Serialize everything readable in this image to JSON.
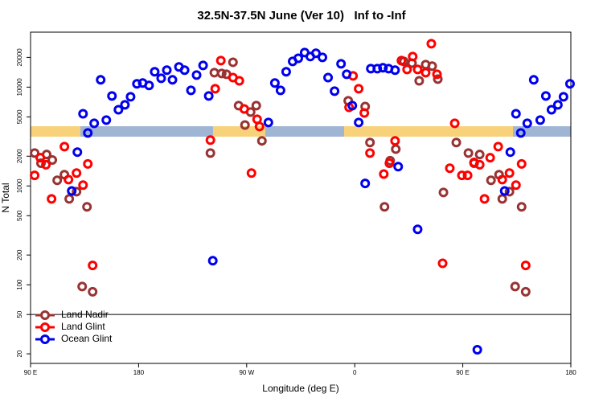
{
  "chart_data": {
    "type": "scatter",
    "title": "32.5N-37.5N June (Ver 10)   Inf to -Inf",
    "x_label": "Longitude (deg E)",
    "y_label": "N Total",
    "log_y": true,
    "legend": "bottom-left",
    "hline": 50,
    "xlim": [
      90,
      540
    ],
    "ylim": [
      16,
      36000
    ],
    "xticks": [
      {
        "value": 90,
        "label": "90 E"
      },
      180,
      {
        "value": 270,
        "label": "90 W"
      },
      {
        "value": 360,
        "label": "0"
      },
      {
        "value": 450,
        "label": "90 E"
      },
      {
        "value": 540,
        "label": "180"
      }
    ],
    "yticks": [
      20,
      50,
      100,
      200,
      500,
      1000,
      2000,
      5000,
      10000,
      20000
    ],
    "series": [
      {
        "name": "Land Nadir",
        "color": "#993333",
        "x": [
          93.4,
          98.7,
          103.4,
          108.1,
          112.2,
          118.2,
          122.2,
          128.3,
          137,
          133,
          141.7,
          239.8,
          243.1,
          249.2,
          253.2,
          258.6,
          263.3,
          268.6,
          273.3,
          278,
          282.7,
          354.6,
          368.7,
          372.7,
          384.8,
          394.2,
          389.5,
          400.9,
          407.7,
          413.7,
          419.1,
          424.5,
          429.2,
          433.9,
          444.6,
          454.7,
          459.4,
          464.1,
          473.5,
          480.2,
          482.9,
          488.9,
          493.6,
          499,
          502.4
        ],
        "values": [
          2150,
          1700,
          2080,
          1830,
          1140,
          1300,
          740,
          875,
          615,
          96,
          85,
          2150,
          14000,
          13750,
          13500,
          17850,
          6500,
          4140,
          5590,
          6500,
          2860,
          7270,
          6370,
          2750,
          615,
          2360,
          1800,
          18200,
          17500,
          11600,
          16900,
          16300,
          12050,
          860,
          2750,
          2150,
          1700,
          2080,
          1140,
          1300,
          740,
          875,
          96,
          615,
          85
        ]
      },
      {
        "name": "Land Glint",
        "color": "#ff0000",
        "x": [
          93.4,
          98.1,
          102.8,
          107.5,
          118.2,
          121.6,
          128.3,
          133.7,
          137.7,
          141.7,
          239.8,
          243.8,
          248.5,
          258.6,
          263.9,
          268,
          274,
          278.7,
          280.7,
          358.6,
          363.3,
          355.3,
          368,
          372.7,
          384.2,
          388.9,
          393.6,
          398.9,
          403.6,
          408.3,
          412.4,
          419.1,
          423.8,
          428.5,
          433.2,
          439.2,
          443.3,
          449.3,
          454,
          459.4,
          464.1,
          468.1,
          472.8,
          479.5,
          482.9,
          488.9,
          494.3,
          499,
          502.4
        ],
        "values": [
          1280,
          1930,
          1640,
          740,
          2500,
          1160,
          1350,
          1020,
          1670,
          157,
          2910,
          9630,
          18550,
          12500,
          11600,
          6020,
          1350,
          4730,
          3990,
          13000,
          9630,
          6250,
          5480,
          2150,
          1320,
          1700,
          2860,
          18550,
          15100,
          20400,
          15100,
          14000,
          27500,
          13500,
          165,
          1510,
          4300,
          1280,
          1280,
          1730,
          1640,
          740,
          1930,
          2500,
          1160,
          1350,
          1020,
          1670,
          157
        ]
      },
      {
        "name": "Ocean Glint",
        "color": "#0000ee",
        "x": [
          124.3,
          129,
          133.7,
          137.7,
          143,
          148.4,
          153.1,
          157.8,
          163.2,
          168.6,
          173.3,
          178.6,
          183.4,
          188.7,
          193.4,
          198.8,
          203.5,
          208.2,
          213.6,
          218.3,
          223.6,
          228.3,
          233.7,
          238.4,
          241.8,
          288.1,
          293.5,
          298.2,
          302.9,
          308.3,
          313,
          318.3,
          323,
          327.7,
          333.1,
          337.8,
          343.2,
          348.6,
          353.3,
          358,
          363.3,
          368.7,
          373.4,
          378.8,
          383.5,
          388.2,
          393.6,
          396.2,
          412.4,
          462.1,
          484.9,
          489.6,
          494.3,
          498.3,
          503.7,
          509.1,
          514.5,
          519.2,
          523.9,
          529.2,
          533.9,
          539.3
        ],
        "values": [
          890,
          2200,
          5380,
          3440,
          4300,
          11850,
          4640,
          8140,
          5910,
          6620,
          7990,
          10800,
          11000,
          10400,
          14300,
          12300,
          14850,
          11850,
          16000,
          14850,
          9270,
          13250,
          16600,
          8140,
          175,
          4390,
          11000,
          9270,
          14300,
          18200,
          19600,
          22400,
          20400,
          22000,
          20000,
          12500,
          9100,
          17200,
          13500,
          6500,
          4390,
          1060,
          15400,
          15400,
          15700,
          15400,
          14850,
          1570,
          364,
          22,
          890,
          2200,
          5380,
          3440,
          4300,
          11850,
          4640,
          8140,
          5910,
          6620,
          7990,
          10800
        ]
      }
    ]
  }
}
